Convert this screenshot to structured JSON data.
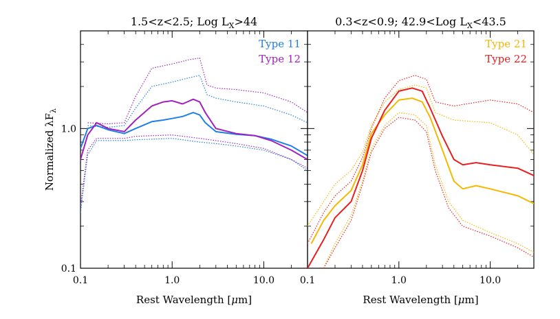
{
  "chart_data": [
    {
      "type": "line",
      "title": "1.5<z<2.5; Log L",
      "title_sub": "X",
      "title_tail": ">44",
      "xlabel": "Rest Wavelength [",
      "xlabel_mu": "μ",
      "xlabel_tail": "m]",
      "ylabel": "Normalized λF",
      "ylabel_sub": "λ",
      "x_scale": "log",
      "y_scale": "log",
      "xlim": [
        0.1,
        30
      ],
      "ylim": [
        0.1,
        5
      ],
      "x_ticks": [
        {
          "v": 0.1,
          "label": "0.1"
        },
        {
          "v": 1.0,
          "label": "1.0"
        },
        {
          "v": 10.0,
          "label": "10.0"
        }
      ],
      "y_ticks": [
        {
          "v": 0.1,
          "label": "0.1"
        },
        {
          "v": 1.0,
          "label": "1.0"
        }
      ],
      "legend_placement": "top-right",
      "series": [
        {
          "name": "Type 11",
          "color": "#1e7fe6",
          "median": [
            [
              0.1,
              0.72
            ],
            [
              0.12,
              1.0
            ],
            [
              0.15,
              1.05
            ],
            [
              0.2,
              0.98
            ],
            [
              0.3,
              0.92
            ],
            [
              0.4,
              1.0
            ],
            [
              0.6,
              1.12
            ],
            [
              0.8,
              1.15
            ],
            [
              1.0,
              1.18
            ],
            [
              1.3,
              1.22
            ],
            [
              1.7,
              1.3
            ],
            [
              2.0,
              1.25
            ],
            [
              2.3,
              1.1
            ],
            [
              3.0,
              0.95
            ],
            [
              5.0,
              0.91
            ],
            [
              8.0,
              0.89
            ],
            [
              12.0,
              0.84
            ],
            [
              20.0,
              0.75
            ],
            [
              30.0,
              0.64
            ]
          ],
          "upper": [
            [
              0.12,
              1.05
            ],
            [
              0.2,
              1.02
            ],
            [
              0.3,
              1.05
            ],
            [
              0.4,
              1.4
            ],
            [
              0.6,
              2.0
            ],
            [
              1.0,
              2.15
            ],
            [
              1.5,
              2.3
            ],
            [
              2.0,
              2.4
            ],
            [
              2.4,
              1.75
            ],
            [
              3.0,
              1.65
            ],
            [
              5.0,
              1.55
            ],
            [
              10.0,
              1.45
            ],
            [
              20.0,
              1.25
            ],
            [
              30.0,
              1.1
            ]
          ],
          "lower": [
            [
              0.1,
              0.25
            ],
            [
              0.12,
              0.65
            ],
            [
              0.15,
              0.82
            ],
            [
              0.3,
              0.82
            ],
            [
              0.4,
              0.83
            ],
            [
              1.0,
              0.85
            ],
            [
              2.0,
              0.8
            ],
            [
              3.0,
              0.78
            ],
            [
              5.0,
              0.75
            ],
            [
              10.0,
              0.7
            ],
            [
              20.0,
              0.6
            ],
            [
              30.0,
              0.5
            ]
          ]
        },
        {
          "name": "Type 12",
          "color": "#a020c0",
          "median": [
            [
              0.1,
              0.6
            ],
            [
              0.12,
              0.9
            ],
            [
              0.15,
              1.1
            ],
            [
              0.2,
              1.0
            ],
            [
              0.3,
              0.95
            ],
            [
              0.4,
              1.15
            ],
            [
              0.6,
              1.45
            ],
            [
              0.8,
              1.55
            ],
            [
              1.0,
              1.58
            ],
            [
              1.3,
              1.5
            ],
            [
              1.7,
              1.62
            ],
            [
              2.0,
              1.55
            ],
            [
              2.3,
              1.3
            ],
            [
              3.0,
              1.0
            ],
            [
              5.0,
              0.92
            ],
            [
              8.0,
              0.89
            ],
            [
              12.0,
              0.82
            ],
            [
              20.0,
              0.7
            ],
            [
              30.0,
              0.6
            ]
          ],
          "upper": [
            [
              0.12,
              1.1
            ],
            [
              0.2,
              1.08
            ],
            [
              0.3,
              1.1
            ],
            [
              0.4,
              1.7
            ],
            [
              0.6,
              2.7
            ],
            [
              1.0,
              2.9
            ],
            [
              1.5,
              3.1
            ],
            [
              2.0,
              3.2
            ],
            [
              2.4,
              2.05
            ],
            [
              3.0,
              1.95
            ],
            [
              5.0,
              1.9
            ],
            [
              10.0,
              1.8
            ],
            [
              20.0,
              1.55
            ],
            [
              30.0,
              1.3
            ]
          ],
          "lower": [
            [
              0.1,
              0.28
            ],
            [
              0.12,
              0.7
            ],
            [
              0.15,
              0.85
            ],
            [
              0.3,
              0.85
            ],
            [
              0.4,
              0.88
            ],
            [
              1.0,
              0.9
            ],
            [
              2.0,
              0.85
            ],
            [
              3.0,
              0.82
            ],
            [
              5.0,
              0.78
            ],
            [
              10.0,
              0.72
            ],
            [
              20.0,
              0.6
            ],
            [
              30.0,
              0.52
            ]
          ]
        }
      ]
    },
    {
      "type": "line",
      "title": "0.3<z<0.9; 42.9<Log L",
      "title_sub": "X",
      "title_tail": "<43.5",
      "xlabel": "Rest Wavelength [",
      "xlabel_mu": "μ",
      "xlabel_tail": "m]",
      "x_scale": "log",
      "y_scale": "log",
      "xlim": [
        0.1,
        30
      ],
      "ylim": [
        0.1,
        5
      ],
      "x_ticks": [
        {
          "v": 0.1,
          "label": "0.1"
        },
        {
          "v": 1.0,
          "label": "1.0"
        },
        {
          "v": 10.0,
          "label": "10.0"
        }
      ],
      "legend_placement": "top-right",
      "series": [
        {
          "name": "Type 21",
          "color": "#f5b800",
          "median": [
            [
              0.11,
              0.15
            ],
            [
              0.15,
              0.22
            ],
            [
              0.2,
              0.28
            ],
            [
              0.3,
              0.36
            ],
            [
              0.4,
              0.55
            ],
            [
              0.5,
              0.92
            ],
            [
              0.7,
              1.25
            ],
            [
              1.0,
              1.6
            ],
            [
              1.4,
              1.65
            ],
            [
              1.8,
              1.55
            ],
            [
              2.2,
              1.2
            ],
            [
              3.0,
              0.7
            ],
            [
              4.0,
              0.42
            ],
            [
              5.0,
              0.37
            ],
            [
              7.0,
              0.39
            ],
            [
              10.0,
              0.37
            ],
            [
              20.0,
              0.33
            ],
            [
              30.0,
              0.29
            ]
          ],
          "upper": [
            [
              0.1,
              0.2
            ],
            [
              0.15,
              0.3
            ],
            [
              0.2,
              0.4
            ],
            [
              0.3,
              0.5
            ],
            [
              0.4,
              0.68
            ],
            [
              0.5,
              1.05
            ],
            [
              0.7,
              1.55
            ],
            [
              1.0,
              1.9
            ],
            [
              1.5,
              2.05
            ],
            [
              2.0,
              1.95
            ],
            [
              2.5,
              1.3
            ],
            [
              4.0,
              1.15
            ],
            [
              10.0,
              1.1
            ],
            [
              20.0,
              0.9
            ],
            [
              30.0,
              0.65
            ]
          ],
          "lower": [
            [
              0.15,
              0.1
            ],
            [
              0.2,
              0.15
            ],
            [
              0.3,
              0.24
            ],
            [
              0.4,
              0.42
            ],
            [
              0.5,
              0.72
            ],
            [
              0.7,
              1.05
            ],
            [
              1.0,
              1.3
            ],
            [
              1.5,
              1.25
            ],
            [
              2.0,
              1.05
            ],
            [
              2.5,
              0.55
            ],
            [
              3.5,
              0.3
            ],
            [
              5.0,
              0.22
            ],
            [
              10.0,
              0.18
            ],
            [
              20.0,
              0.15
            ],
            [
              30.0,
              0.13
            ]
          ]
        },
        {
          "name": "Type 22",
          "color": "#e81e1e",
          "median": [
            [
              0.1,
              0.1
            ],
            [
              0.15,
              0.16
            ],
            [
              0.2,
              0.23
            ],
            [
              0.3,
              0.3
            ],
            [
              0.4,
              0.5
            ],
            [
              0.5,
              0.85
            ],
            [
              0.7,
              1.35
            ],
            [
              1.0,
              1.85
            ],
            [
              1.4,
              1.95
            ],
            [
              1.8,
              1.85
            ],
            [
              2.2,
              1.4
            ],
            [
              3.0,
              0.88
            ],
            [
              4.0,
              0.6
            ],
            [
              5.0,
              0.55
            ],
            [
              7.0,
              0.57
            ],
            [
              10.0,
              0.55
            ],
            [
              20.0,
              0.52
            ],
            [
              30.0,
              0.46
            ]
          ],
          "upper": [
            [
              0.1,
              0.15
            ],
            [
              0.15,
              0.25
            ],
            [
              0.2,
              0.33
            ],
            [
              0.3,
              0.42
            ],
            [
              0.4,
              0.62
            ],
            [
              0.5,
              1.0
            ],
            [
              0.7,
              1.65
            ],
            [
              1.0,
              2.2
            ],
            [
              1.5,
              2.4
            ],
            [
              2.0,
              2.25
            ],
            [
              2.5,
              1.55
            ],
            [
              4.0,
              1.45
            ],
            [
              10.0,
              1.6
            ],
            [
              20.0,
              1.5
            ],
            [
              30.0,
              1.3
            ]
          ],
          "lower": [
            [
              0.15,
              0.1
            ],
            [
              0.2,
              0.14
            ],
            [
              0.3,
              0.22
            ],
            [
              0.4,
              0.4
            ],
            [
              0.5,
              0.68
            ],
            [
              0.7,
              1.0
            ],
            [
              1.0,
              1.2
            ],
            [
              1.5,
              1.15
            ],
            [
              2.0,
              0.95
            ],
            [
              2.5,
              0.5
            ],
            [
              3.5,
              0.27
            ],
            [
              5.0,
              0.2
            ],
            [
              10.0,
              0.17
            ],
            [
              20.0,
              0.14
            ],
            [
              30.0,
              0.12
            ]
          ]
        }
      ]
    }
  ]
}
